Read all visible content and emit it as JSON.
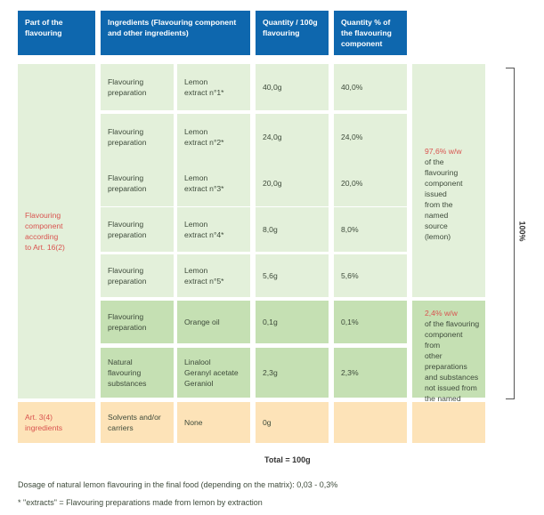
{
  "headers": {
    "part": "Part of the\nflavouring",
    "ingredients": "Ingredients (Flavouring component\nand other ingredients)",
    "quantity": "Quantity / 100g\nflavouring",
    "percent": "Quantity % of\nthe flavouring\ncomponent"
  },
  "part_labels": {
    "flavouring_component": "Flavouring\ncomponent\naccording\nto Art. 16(2)",
    "art34": "Art. 3(4) ingredients"
  },
  "rows": [
    {
      "type": "Flavouring\npreparation",
      "name": "Lemon\nextract n°1*",
      "qty": "40,0g",
      "pct": "40,0%"
    },
    {
      "type": "Flavouring\npreparation",
      "name": "Lemon\nextract n°2*",
      "qty": "24,0g",
      "pct": "24,0%"
    },
    {
      "type": "Flavouring\npreparation",
      "name": "Lemon\nextract n°3*",
      "qty": "20,0g",
      "pct": "20,0%"
    },
    {
      "type": "Flavouring\npreparation",
      "name": "Lemon\nextract n°4*",
      "qty": "8,0g",
      "pct": "8,0%"
    },
    {
      "type": "Flavouring\npreparation",
      "name": "Lemon\nextract n°5*",
      "qty": "5,6g",
      "pct": "5,6%"
    },
    {
      "type": "Flavouring\npreparation",
      "name": "Orange oil",
      "qty": "0,1g",
      "pct": "0,1%"
    },
    {
      "type": "Natural flavouring\nsubstances",
      "name": "Linalool\nGeranyl acetate\nGeraniol",
      "qty": "2,3g",
      "pct": "2,3%"
    },
    {
      "type": "Solvents and/or\ncarriers",
      "name": "None",
      "qty": "0g",
      "pct": ""
    }
  ],
  "notes": {
    "note1_value": "97,6% w/w",
    "note1_text": "of the flavouring\ncomponent issued\nfrom the named\nsource\n(lemon)",
    "note2_value": "2,4% w/w",
    "note2_text": "of the flavouring\ncomponent from\nother preparations\nand substances\nnot issued from\nthe named source\n(lemon)"
  },
  "bracket_label": "100%",
  "total": "Total = 100g",
  "footnotes": {
    "dosage": "Dosage of natural lemon flavouring in the final food (depending on the matrix): 0,03 - 0,3%",
    "extracts": "* \"extracts\" = Flavouring preparations made from lemon by extraction"
  },
  "colors": {
    "header": "#0e67ae",
    "light_green": "#e3f0da",
    "dark_green": "#c5e0b3",
    "yellow": "#fde3b8",
    "red_text": "#d9534f"
  }
}
